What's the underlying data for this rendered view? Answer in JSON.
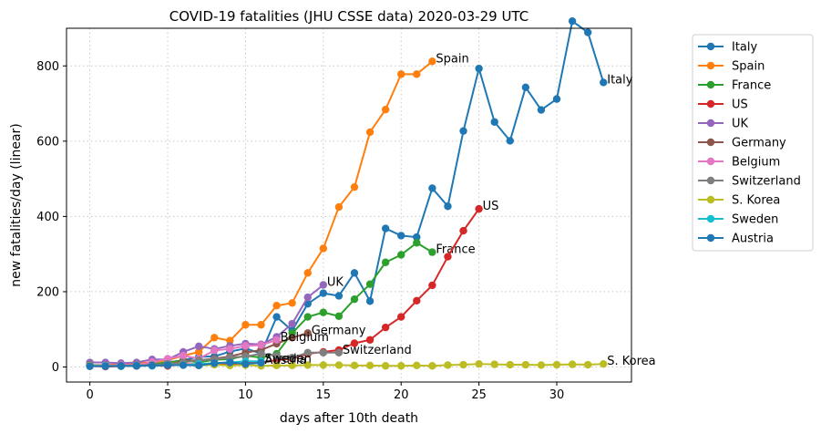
{
  "chart_data": {
    "type": "line",
    "title": "COVID-19 fatalities (JHU CSSE data) 2020-03-29 UTC",
    "xlabel": "days after 10th death",
    "ylabel": "new fatalities/day (linear)",
    "xlim": [
      -1.5,
      34.8
    ],
    "ylim": [
      -40,
      900
    ],
    "xticks": [
      0,
      5,
      10,
      15,
      20,
      25,
      30
    ],
    "yticks": [
      0,
      200,
      400,
      600,
      800
    ],
    "grid": true,
    "legend_position": "outside-right",
    "series": [
      {
        "name": "Italy",
        "color": "#1f77b4",
        "end_label": "Italy",
        "values": [
          [
            0,
            5
          ],
          [
            1,
            4
          ],
          [
            2,
            3
          ],
          [
            3,
            5
          ],
          [
            4,
            8
          ],
          [
            5,
            12
          ],
          [
            6,
            18
          ],
          [
            7,
            27
          ],
          [
            8,
            28
          ],
          [
            9,
            41
          ],
          [
            10,
            49
          ],
          [
            11,
            36
          ],
          [
            12,
            133
          ],
          [
            13,
            97
          ],
          [
            14,
            168
          ],
          [
            15,
            196
          ],
          [
            16,
            189
          ],
          [
            17,
            250
          ],
          [
            18,
            175
          ],
          [
            19,
            368
          ],
          [
            20,
            349
          ],
          [
            21,
            345
          ],
          [
            22,
            475
          ],
          [
            23,
            427
          ],
          [
            24,
            627
          ],
          [
            25,
            793
          ],
          [
            26,
            651
          ],
          [
            27,
            601
          ],
          [
            28,
            743
          ],
          [
            29,
            683
          ],
          [
            30,
            712
          ],
          [
            31,
            919
          ],
          [
            32,
            889
          ],
          [
            33,
            756
          ]
        ]
      },
      {
        "name": "Spain",
        "color": "#ff7f0e",
        "end_label": "Spain",
        "values": [
          [
            0,
            3
          ],
          [
            1,
            5
          ],
          [
            2,
            8
          ],
          [
            3,
            10
          ],
          [
            4,
            12
          ],
          [
            5,
            18
          ],
          [
            6,
            30
          ],
          [
            7,
            40
          ],
          [
            8,
            78
          ],
          [
            9,
            70
          ],
          [
            10,
            112
          ],
          [
            11,
            112
          ],
          [
            12,
            163
          ],
          [
            13,
            170
          ],
          [
            14,
            250
          ],
          [
            15,
            315
          ],
          [
            16,
            425
          ],
          [
            17,
            478
          ],
          [
            18,
            624
          ],
          [
            19,
            684
          ],
          [
            20,
            778
          ],
          [
            21,
            778
          ],
          [
            22,
            812
          ]
        ]
      },
      {
        "name": "France",
        "color": "#2ca02c",
        "end_label": "France",
        "values": [
          [
            0,
            4
          ],
          [
            1,
            3
          ],
          [
            2,
            5
          ],
          [
            3,
            3
          ],
          [
            4,
            7
          ],
          [
            5,
            12
          ],
          [
            6,
            18
          ],
          [
            7,
            12
          ],
          [
            8,
            19
          ],
          [
            9,
            21
          ],
          [
            10,
            30
          ],
          [
            11,
            25
          ],
          [
            12,
            35
          ],
          [
            13,
            90
          ],
          [
            14,
            133
          ],
          [
            15,
            145
          ],
          [
            16,
            135
          ],
          [
            17,
            180
          ],
          [
            18,
            220
          ],
          [
            19,
            278
          ],
          [
            20,
            298
          ],
          [
            21,
            330
          ],
          [
            22,
            305
          ]
        ]
      },
      {
        "name": "US",
        "color": "#d62728",
        "end_label": "US",
        "values": [
          [
            0,
            3
          ],
          [
            1,
            1
          ],
          [
            2,
            2
          ],
          [
            3,
            3
          ],
          [
            4,
            4
          ],
          [
            5,
            3
          ],
          [
            6,
            7
          ],
          [
            7,
            8
          ],
          [
            8,
            7
          ],
          [
            9,
            7
          ],
          [
            10,
            10
          ],
          [
            11,
            12
          ],
          [
            12,
            18
          ],
          [
            13,
            22
          ],
          [
            14,
            35
          ],
          [
            15,
            40
          ],
          [
            16,
            45
          ],
          [
            17,
            63
          ],
          [
            18,
            72
          ],
          [
            19,
            105
          ],
          [
            20,
            133
          ],
          [
            21,
            176
          ],
          [
            22,
            217
          ],
          [
            23,
            293
          ],
          [
            24,
            362
          ],
          [
            25,
            420
          ]
        ]
      },
      {
        "name": "UK",
        "color": "#9467bd",
        "end_label": "UK",
        "values": [
          [
            0,
            12
          ],
          [
            1,
            12
          ],
          [
            2,
            10
          ],
          [
            3,
            12
          ],
          [
            4,
            20
          ],
          [
            5,
            20
          ],
          [
            6,
            40
          ],
          [
            7,
            55
          ],
          [
            8,
            48
          ],
          [
            9,
            56
          ],
          [
            10,
            62
          ],
          [
            11,
            60
          ],
          [
            12,
            80
          ],
          [
            13,
            115
          ],
          [
            14,
            185
          ],
          [
            15,
            218
          ]
        ]
      },
      {
        "name": "Germany",
        "color": "#8c564b",
        "end_label": "Germany",
        "values": [
          [
            0,
            5
          ],
          [
            1,
            4
          ],
          [
            2,
            3
          ],
          [
            3,
            6
          ],
          [
            4,
            7
          ],
          [
            5,
            6
          ],
          [
            6,
            16
          ],
          [
            7,
            18
          ],
          [
            8,
            22
          ],
          [
            9,
            28
          ],
          [
            10,
            38
          ],
          [
            11,
            45
          ],
          [
            12,
            62
          ],
          [
            13,
            78
          ],
          [
            14,
            90
          ]
        ]
      },
      {
        "name": "Belgium",
        "color": "#e377c2",
        "end_label": "Belgium",
        "values": [
          [
            0,
            2
          ],
          [
            1,
            4
          ],
          [
            2,
            5
          ],
          [
            3,
            5
          ],
          [
            4,
            13
          ],
          [
            5,
            22
          ],
          [
            6,
            30
          ],
          [
            7,
            22
          ],
          [
            8,
            44
          ],
          [
            9,
            48
          ],
          [
            10,
            56
          ],
          [
            11,
            58
          ],
          [
            12,
            72
          ]
        ]
      },
      {
        "name": "Switzerland",
        "color": "#7f7f7f",
        "end_label": "Switzerland",
        "values": [
          [
            0,
            5
          ],
          [
            1,
            2
          ],
          [
            2,
            3
          ],
          [
            3,
            4
          ],
          [
            4,
            5
          ],
          [
            5,
            8
          ],
          [
            6,
            12
          ],
          [
            7,
            18
          ],
          [
            8,
            20
          ],
          [
            9,
            25
          ],
          [
            10,
            28
          ],
          [
            11,
            35
          ],
          [
            12,
            30
          ],
          [
            13,
            25
          ],
          [
            14,
            38
          ],
          [
            15,
            38
          ],
          [
            16,
            38
          ]
        ]
      },
      {
        "name": "S. Korea",
        "color": "#bcbd22",
        "end_label": "S. Korea",
        "values": [
          [
            0,
            3
          ],
          [
            1,
            3
          ],
          [
            2,
            2
          ],
          [
            3,
            4
          ],
          [
            4,
            4
          ],
          [
            5,
            5
          ],
          [
            6,
            6
          ],
          [
            7,
            4
          ],
          [
            8,
            6
          ],
          [
            9,
            4
          ],
          [
            10,
            5
          ],
          [
            11,
            3
          ],
          [
            12,
            4
          ],
          [
            13,
            4
          ],
          [
            14,
            5
          ],
          [
            15,
            5
          ],
          [
            16,
            5
          ],
          [
            17,
            4
          ],
          [
            18,
            4
          ],
          [
            19,
            3
          ],
          [
            20,
            3
          ],
          [
            21,
            4
          ],
          [
            22,
            3
          ],
          [
            23,
            5
          ],
          [
            24,
            6
          ],
          [
            25,
            8
          ],
          [
            26,
            7
          ],
          [
            27,
            6
          ],
          [
            28,
            6
          ],
          [
            29,
            5
          ],
          [
            30,
            6
          ],
          [
            31,
            7
          ],
          [
            32,
            6
          ],
          [
            33,
            8
          ]
        ]
      },
      {
        "name": "Sweden",
        "color": "#17becf",
        "end_label": "Sweden",
        "values": [
          [
            0,
            2
          ],
          [
            1,
            3
          ],
          [
            2,
            2
          ],
          [
            3,
            4
          ],
          [
            4,
            3
          ],
          [
            5,
            5
          ],
          [
            6,
            5
          ],
          [
            7,
            8
          ],
          [
            8,
            10
          ],
          [
            9,
            12
          ],
          [
            10,
            15
          ],
          [
            11,
            15
          ]
        ]
      },
      {
        "name": "Austria",
        "color": "#1f77b4",
        "end_label": "Austria",
        "values": [
          [
            0,
            2
          ],
          [
            1,
            2
          ],
          [
            2,
            3
          ],
          [
            3,
            3
          ],
          [
            4,
            4
          ],
          [
            5,
            5
          ],
          [
            6,
            5
          ],
          [
            7,
            4
          ],
          [
            8,
            10
          ],
          [
            9,
            12
          ],
          [
            10,
            8
          ],
          [
            11,
            11
          ]
        ]
      }
    ]
  }
}
